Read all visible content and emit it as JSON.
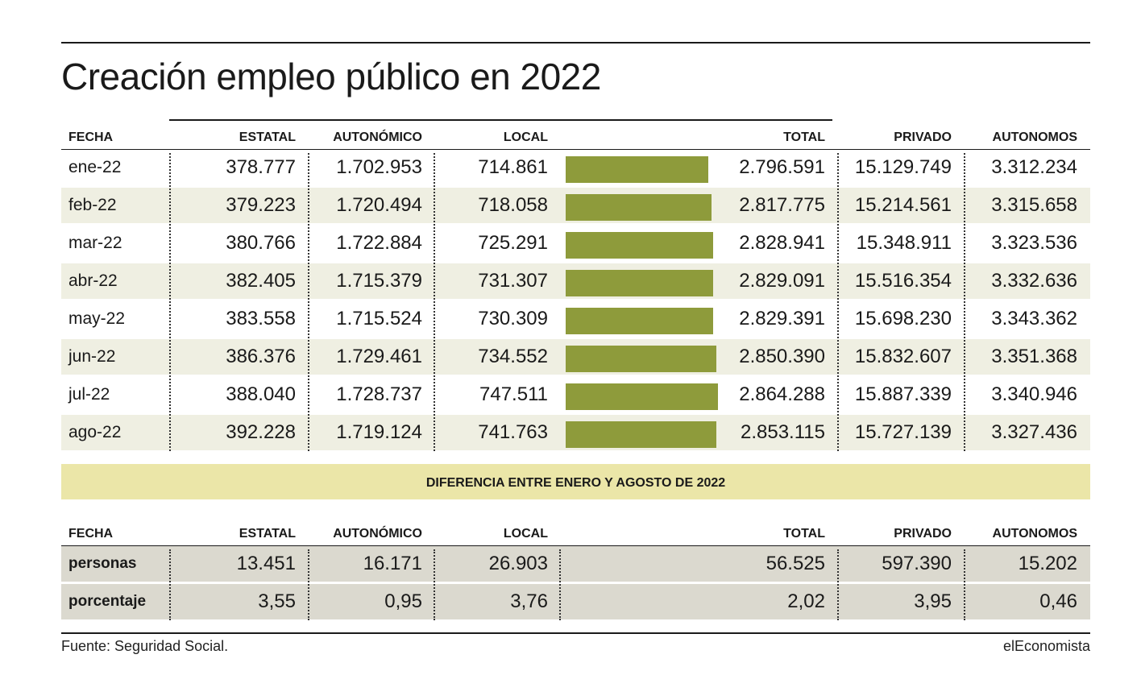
{
  "title": "Creación empleo público en 2022",
  "headers": [
    "FECHA",
    "ESTATAL",
    "AUTONÓMICO",
    "LOCAL",
    "TOTAL",
    "PRIVADO",
    "AUTONOMOS"
  ],
  "rows": [
    {
      "fecha": "ene-22",
      "estatal": "378.777",
      "autonomico": "1.702.953",
      "local": "714.861",
      "total": "2.796.591",
      "privado": "15.129.749",
      "autonomos": "3.312.234"
    },
    {
      "fecha": "feb-22",
      "estatal": "379.223",
      "autonomico": "1.720.494",
      "local": "718.058",
      "total": "2.817.775",
      "privado": "15.214.561",
      "autonomos": "3.315.658"
    },
    {
      "fecha": "mar-22",
      "estatal": "380.766",
      "autonomico": "1.722.884",
      "local": "725.291",
      "total": "2.828.941",
      "privado": "15.348.911",
      "autonomos": "3.323.536"
    },
    {
      "fecha": "abr-22",
      "estatal": "382.405",
      "autonomico": "1.715.379",
      "local": "731.307",
      "total": "2.829.091",
      "privado": "15.516.354",
      "autonomos": "3.332.636"
    },
    {
      "fecha": "may-22",
      "estatal": "383.558",
      "autonomico": "1.715.524",
      "local": "730.309",
      "total": "2.829.391",
      "privado": "15.698.230",
      "autonomos": "3.343.362"
    },
    {
      "fecha": "jun-22",
      "estatal": "386.376",
      "autonomico": "1.729.461",
      "local": "734.552",
      "total": "2.850.390",
      "privado": "15.832.607",
      "autonomos": "3.351.368"
    },
    {
      "fecha": "jul-22",
      "estatal": "388.040",
      "autonomico": "1.728.737",
      "local": "747.511",
      "total": "2.864.288",
      "privado": "15.887.339",
      "autonomos": "3.340.946"
    },
    {
      "fecha": "ago-22",
      "estatal": "392.228",
      "autonomico": "1.719.124",
      "local": "741.763",
      "total": "2.853.115",
      "privado": "15.727.139",
      "autonomos": "3.327.436"
    }
  ],
  "bar_color": "#8e9b3b",
  "diff_title": "DIFERENCIA ENTRE ENERO Y AGOSTO DE 2022",
  "diff_headers": [
    "FECHA",
    "ESTATAL",
    "AUTONÓMICO",
    "LOCAL",
    "TOTAL",
    "PRIVADO",
    "AUTONOMOS"
  ],
  "diff_rows": [
    {
      "fecha": "personas",
      "estatal": "13.451",
      "autonomico": "16.171",
      "local": "26.903",
      "total": "56.525",
      "privado": "597.390",
      "autonomos": "15.202"
    },
    {
      "fecha": "porcentaje",
      "estatal": "3,55",
      "autonomico": "0,95",
      "local": "3,76",
      "total": "2,02",
      "privado": "3,95",
      "autonomos": "0,46"
    }
  ],
  "source": "Fuente: Seguridad Social.",
  "brand": "elEconomista"
}
